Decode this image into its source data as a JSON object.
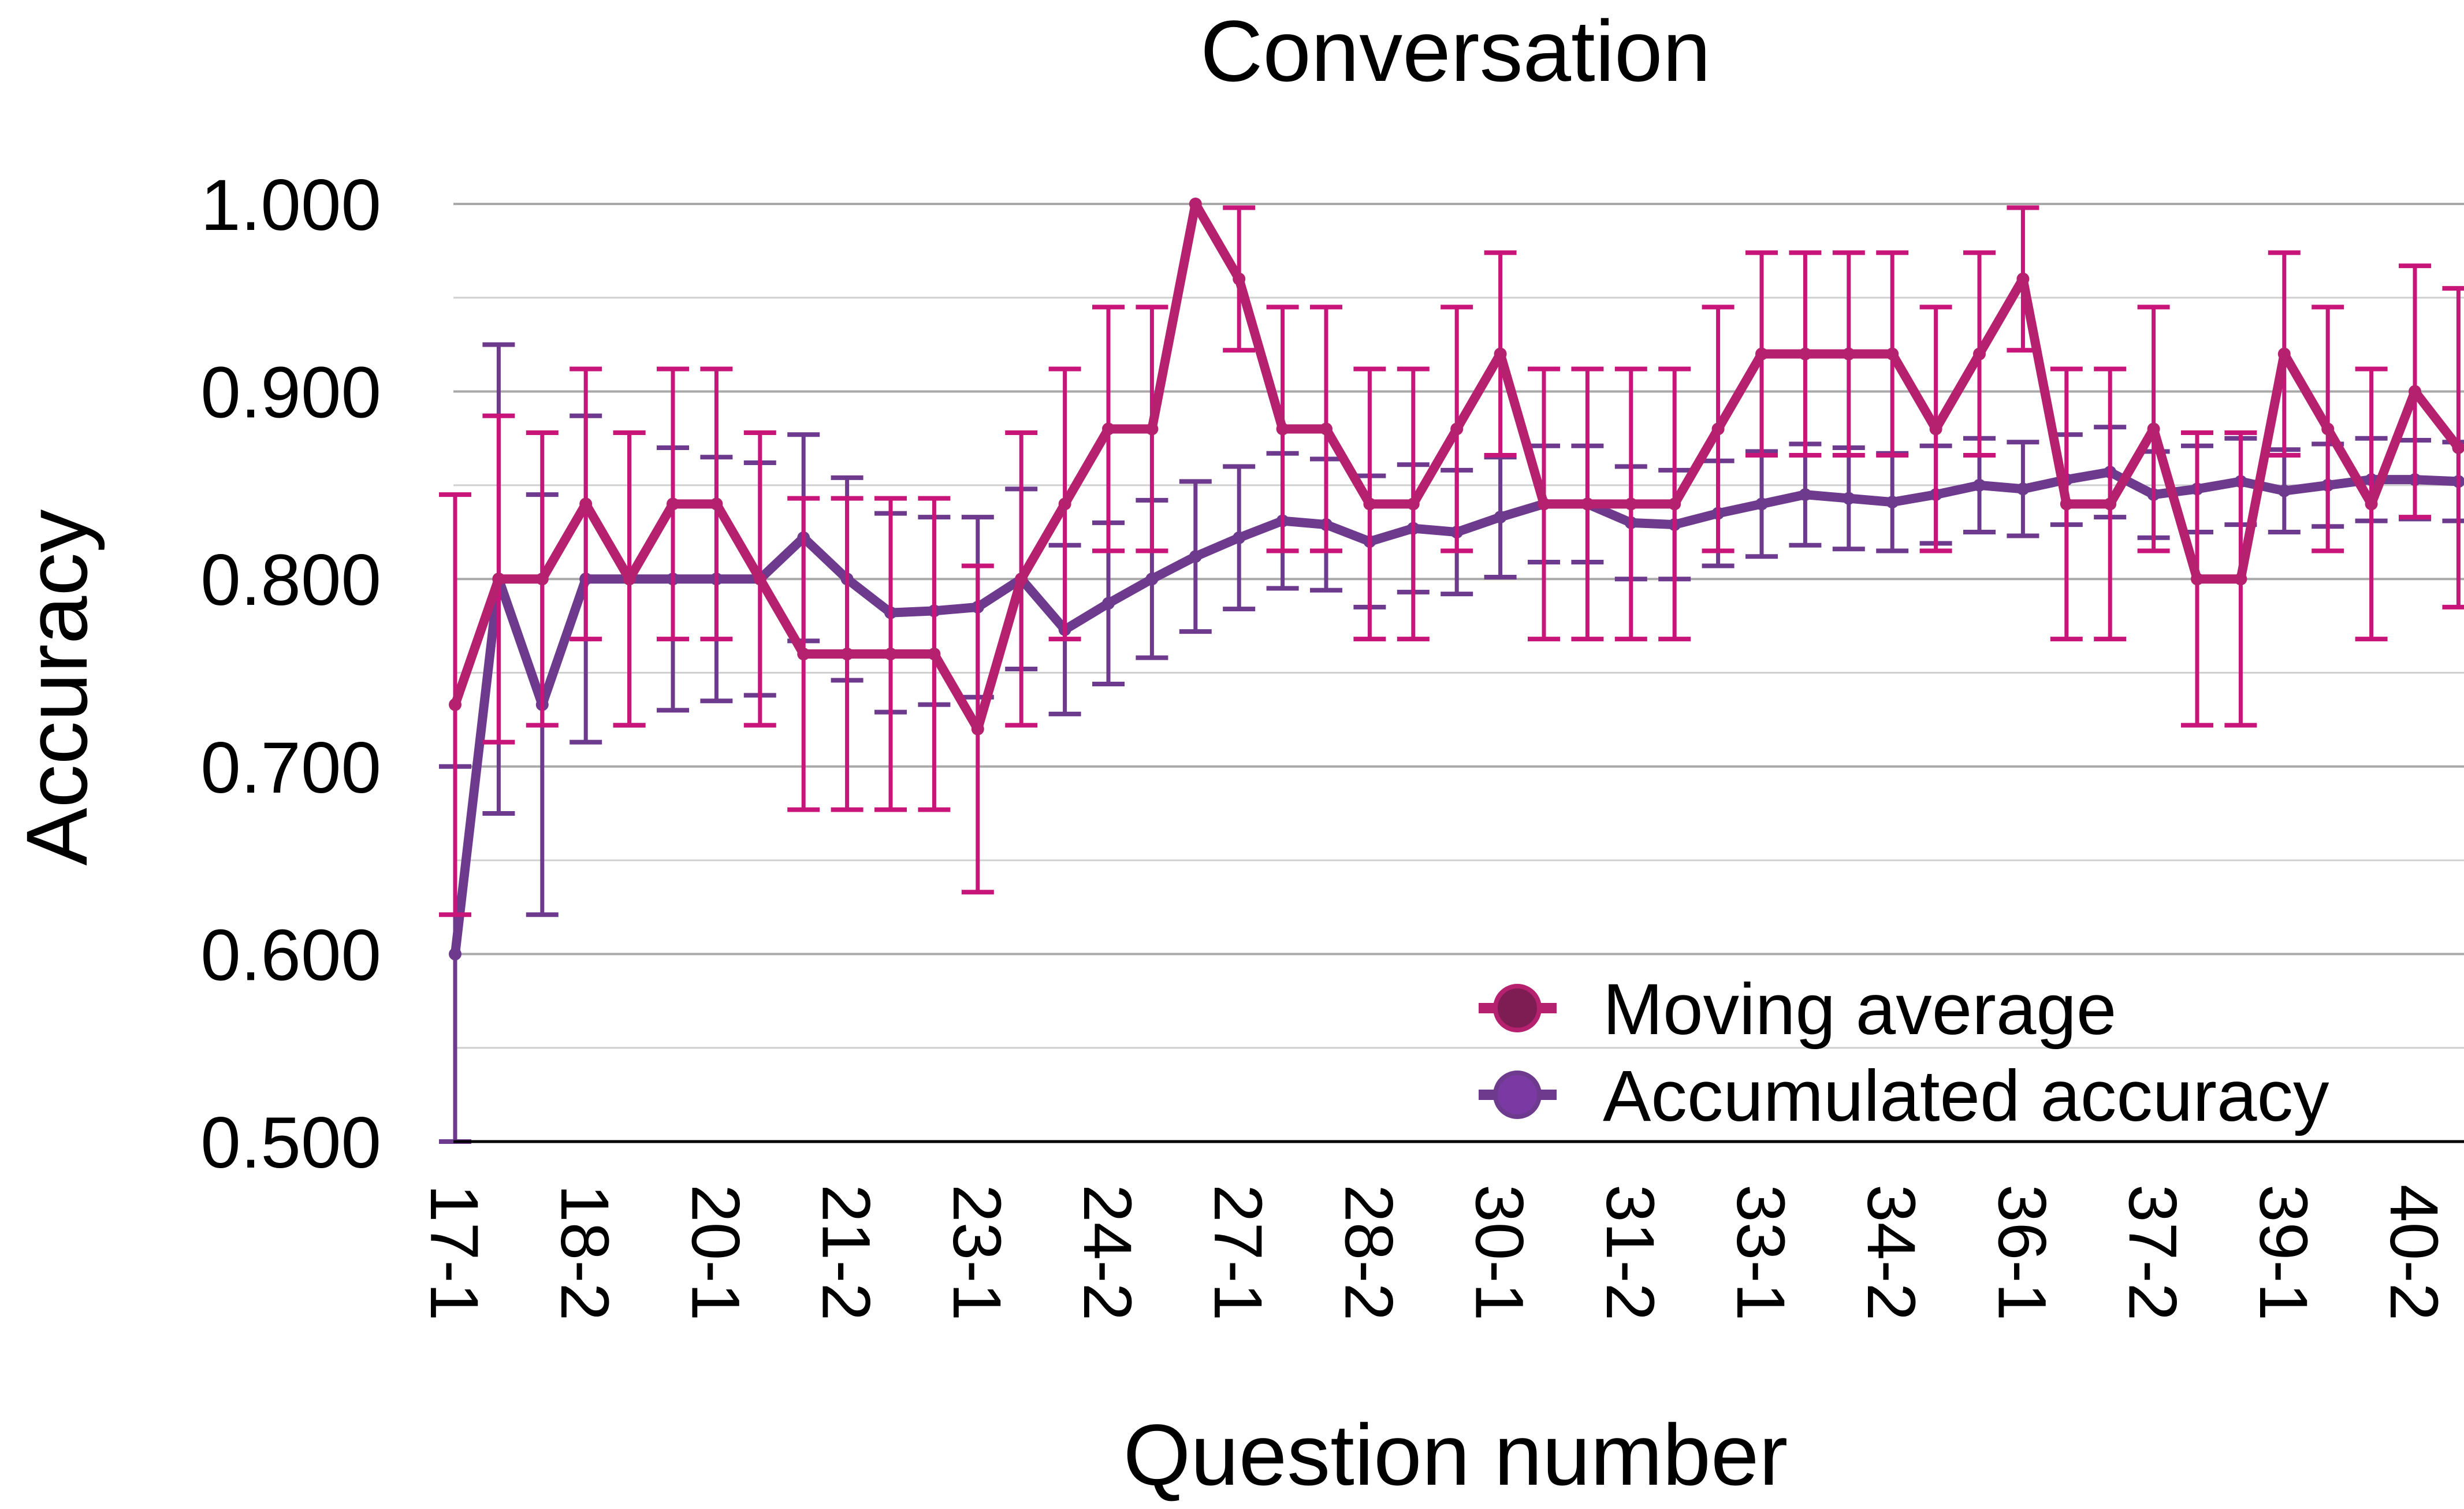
{
  "chart_data": {
    "type": "line",
    "title": "Conversation",
    "xlabel": "Question number",
    "ylabel": "Accuracy",
    "ylim": [
      0.5,
      1.0
    ],
    "y_ticks": [
      "0.500",
      "0.600",
      "0.700",
      "0.800",
      "0.900",
      "1.000"
    ],
    "x_tick_labels": [
      "17-1",
      "18-2",
      "20-1",
      "21-2",
      "23-1",
      "24-2",
      "27-1",
      "28-2",
      "30-1",
      "31-2",
      "33-1",
      "34-2",
      "36-1",
      "37-2",
      "39-1",
      "40-2"
    ],
    "x_tick_every": 3,
    "grid": "horizontal, major and minor",
    "legend": "bottom-right",
    "series": [
      {
        "name": "Moving average",
        "color": "#b5206f",
        "errorbar_color": "#c8157a",
        "values": [
          0.733,
          0.8,
          0.8,
          0.84,
          0.8,
          0.84,
          0.84,
          0.8,
          0.76,
          0.76,
          0.76,
          0.76,
          0.72,
          0.8,
          0.84,
          0.88,
          0.88,
          1.0,
          0.96,
          0.88,
          0.88,
          0.84,
          0.84,
          0.88,
          0.92,
          0.84,
          0.84,
          0.84,
          0.84,
          0.88,
          0.92,
          0.92,
          0.92,
          0.92,
          0.88,
          0.92,
          0.96,
          0.84,
          0.84,
          0.88,
          0.8,
          0.8,
          0.92,
          0.88,
          0.84,
          0.9,
          0.87
        ],
        "errors": [
          0.112,
          0.087,
          0.078,
          0.072,
          0.078,
          0.072,
          0.072,
          0.078,
          0.083,
          0.083,
          0.083,
          0.083,
          0.087,
          0.078,
          0.072,
          0.065,
          0.065,
          0.0,
          0.038,
          0.065,
          0.065,
          0.072,
          0.072,
          0.065,
          0.054,
          0.072,
          0.072,
          0.072,
          0.072,
          0.065,
          0.054,
          0.054,
          0.054,
          0.054,
          0.065,
          0.054,
          0.038,
          0.072,
          0.072,
          0.065,
          0.078,
          0.078,
          0.054,
          0.065,
          0.072,
          0.067,
          0.085
        ]
      },
      {
        "name": "Accumulated accuracy",
        "color": "#6e3a8e",
        "errorbar_color": "#6e3a8e",
        "values": [
          0.6,
          0.8,
          0.733,
          0.8,
          0.8,
          0.8,
          0.8,
          0.8,
          0.822,
          0.8,
          0.782,
          0.783,
          0.785,
          0.8,
          0.773,
          0.787,
          0.8,
          0.812,
          0.822,
          0.831,
          0.829,
          0.82,
          0.827,
          0.825,
          0.833,
          0.84,
          0.84,
          0.83,
          0.829,
          0.835,
          0.84,
          0.845,
          0.843,
          0.841,
          0.845,
          0.85,
          0.848,
          0.853,
          0.857,
          0.845,
          0.848,
          0.852,
          0.847,
          0.85,
          0.853,
          0.853,
          0.852
        ],
        "errors": [
          0.1,
          0.125,
          0.112,
          0.087,
          0.078,
          0.07,
          0.065,
          0.062,
          0.055,
          0.054,
          0.053,
          0.05,
          0.048,
          0.048,
          0.045,
          0.043,
          0.042,
          0.04,
          0.038,
          0.036,
          0.035,
          0.035,
          0.034,
          0.033,
          0.032,
          0.031,
          0.031,
          0.03,
          0.029,
          0.028,
          0.028,
          0.027,
          0.027,
          0.026,
          0.026,
          0.025,
          0.025,
          0.024,
          0.024,
          0.023,
          0.023,
          0.023,
          0.022,
          0.022,
          0.022,
          0.021,
          0.021
        ]
      }
    ]
  }
}
